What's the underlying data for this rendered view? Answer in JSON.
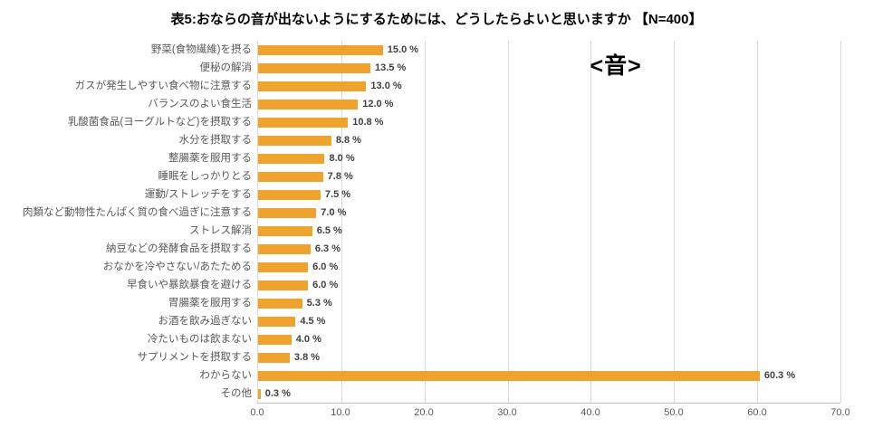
{
  "title": "表5:おならの音が出ないようにするためには、どうしたらよいと思いますか 【N=400】",
  "annotation": "<音>",
  "chart_data": {
    "type": "bar",
    "orientation": "horizontal",
    "title": "表5:おならの音が出ないようにするためには、どうしたらよいと思いますか 【N=400】",
    "categories": [
      "野菜(食物繊維)を摂る",
      "便秘の解消",
      "ガスが発生しやすい食べ物に注意する",
      "バランスのよい食生活",
      "乳酸菌食品(ヨーグルトなど)を摂取する",
      "水分を摂取する",
      "整腸薬を服用する",
      "睡眠をしっかりとる",
      "運動/ストレッチをする",
      "肉類など動物性たんぱく質の食べ過ぎに注意する",
      "ストレス解消",
      "納豆などの発酵食品を摂取する",
      "おなかを冷やさない/あたためる",
      "早食いや暴飲暴食を避ける",
      "胃腸薬を服用する",
      "お酒を飲み過ぎない",
      "冷たいものは飲まない",
      "サプリメントを摂取する",
      "わからない",
      "その他"
    ],
    "values": [
      15.0,
      13.5,
      13.0,
      12.0,
      10.8,
      8.8,
      8.0,
      7.8,
      7.5,
      7.0,
      6.5,
      6.3,
      6.0,
      6.0,
      5.3,
      4.5,
      4.0,
      3.8,
      60.3,
      0.3
    ],
    "value_labels": [
      "15.0 %",
      "13.5 %",
      "13.0 %",
      "12.0 %",
      "10.8 %",
      "8.8 %",
      "8.0 %",
      "7.8 %",
      "7.5 %",
      "7.0 %",
      "6.5 %",
      "6.3 %",
      "6.0 %",
      "6.0 %",
      "5.3 %",
      "4.5 %",
      "4.0 %",
      "3.8 %",
      "60.3 %",
      "0.3 %"
    ],
    "xlabel": "",
    "ylabel": "",
    "xlim": [
      0,
      70
    ],
    "xticks": [
      "0.0",
      "10.0",
      "20.0",
      "30.0",
      "40.0",
      "50.0",
      "60.0",
      "70.0"
    ],
    "grid": true,
    "legend": "none",
    "bar_color": "#F0A32C",
    "gridline_color": "#D9D9D9",
    "axis_line_color": "#BFBFBF"
  }
}
